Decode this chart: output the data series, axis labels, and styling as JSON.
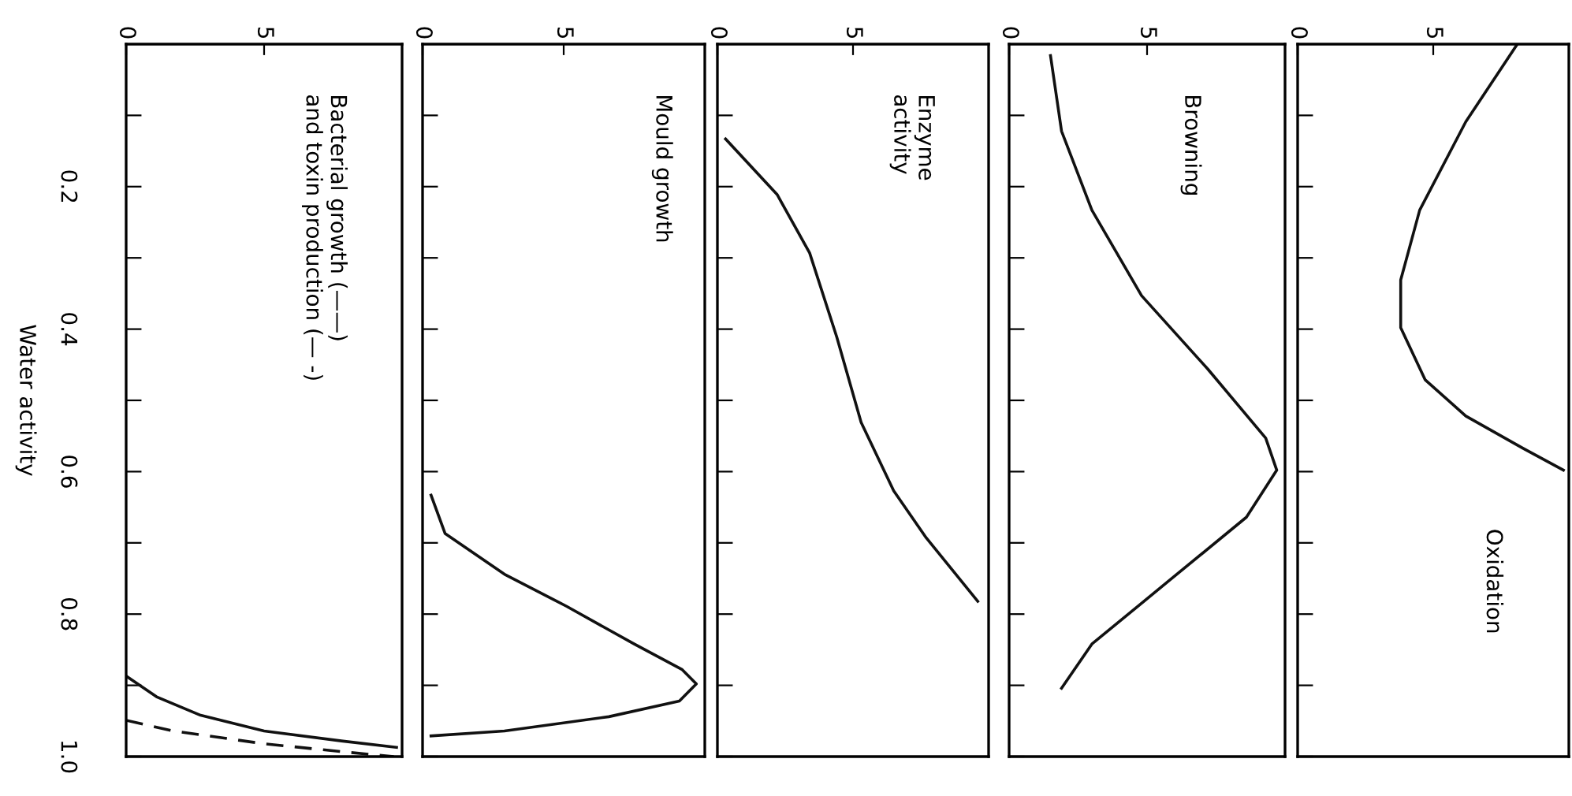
{
  "chart_data": [
    {
      "type": "line",
      "title": "Bacterial growth (——)\nand toxin production (— -)",
      "ylabel": "Water activity",
      "xlim": [
        0,
        10
      ],
      "xticks": [
        0,
        5
      ],
      "ylim": [
        1.0,
        0.0
      ],
      "yticks": [
        {
          "value": 0.1,
          "label": null
        },
        0.2,
        {
          "value": 0.3,
          "label": null
        },
        0.4,
        {
          "value": 0.5,
          "label": null
        },
        0.6,
        {
          "value": 0.7,
          "label": null
        },
        0.8,
        {
          "value": 0.9,
          "label": null
        },
        {
          "value": 1.0,
          "label": "1.0"
        }
      ],
      "grid": false,
      "legend": false,
      "series": [
        {
          "color": "#111111",
          "line_style": "solid",
          "x": [
            0,
            1.1,
            2.7,
            5.0,
            7.8,
            9.8
          ],
          "values": [
            0.887,
            0.916,
            0.942,
            0.964,
            0.978,
            0.987
          ]
        },
        {
          "color": "#111111",
          "line_style": "dashed",
          "x": [
            0,
            1.7,
            5.0,
            7.8,
            9.7
          ],
          "values": [
            0.949,
            0.964,
            0.982,
            0.993,
            1.0
          ]
        }
      ]
    },
    {
      "type": "line",
      "title": "Mould growth",
      "tick_labels": "x",
      "xlim": [
        0,
        10
      ],
      "xticks": [
        0,
        5
      ],
      "ylim": [
        1.0,
        0.0
      ],
      "yticks": [
        {
          "value": 0.1,
          "label": null
        },
        0.2,
        {
          "value": 0.3,
          "label": null
        },
        0.4,
        {
          "value": 0.5,
          "label": null
        },
        0.6,
        {
          "value": 0.7,
          "label": null
        },
        0.8,
        {
          "value": 0.9,
          "label": null
        },
        1.0
      ],
      "grid": false,
      "legend": false,
      "series": [
        {
          "color": "#111111",
          "line_style": "solid",
          "x": [
            0.3,
            0.8,
            2.9,
            5.1,
            7.5,
            9.2,
            9.7,
            9.1,
            6.6,
            2.9,
            0.3
          ],
          "values": [
            0.633,
            0.687,
            0.744,
            0.789,
            0.842,
            0.878,
            0.898,
            0.922,
            0.944,
            0.964,
            0.971
          ]
        }
      ]
    },
    {
      "type": "line",
      "title": "Enzyme\nactivity",
      "tick_labels": "x",
      "xlim": [
        0,
        10
      ],
      "xticks": [
        0,
        5
      ],
      "ylim": [
        1.0,
        0.0
      ],
      "yticks": [
        {
          "value": 0.1,
          "label": null
        },
        0.2,
        {
          "value": 0.3,
          "label": null
        },
        0.4,
        {
          "value": 0.5,
          "label": null
        },
        0.6,
        {
          "value": 0.7,
          "label": null
        },
        0.8,
        {
          "value": 0.9,
          "label": null
        },
        1.0
      ],
      "grid": false,
      "legend": false,
      "series": [
        {
          "color": "#111111",
          "line_style": "solid",
          "x": [
            0.3,
            2.2,
            3.4,
            4.4,
            5.3,
            6.5,
            7.7,
            9.6
          ],
          "values": [
            0.133,
            0.211,
            0.293,
            0.411,
            0.531,
            0.627,
            0.693,
            0.782
          ]
        }
      ]
    },
    {
      "type": "line",
      "title": "Browning",
      "tick_labels": "x",
      "xlim": [
        0,
        10
      ],
      "xticks": [
        0,
        5
      ],
      "ylim": [
        1.0,
        0.0
      ],
      "yticks": [
        {
          "value": 0.1,
          "label": null
        },
        0.2,
        {
          "value": 0.3,
          "label": null
        },
        0.4,
        {
          "value": 0.5,
          "label": null
        },
        0.6,
        {
          "value": 0.7,
          "label": null
        },
        0.8,
        {
          "value": 0.9,
          "label": null
        },
        1.0
      ],
      "grid": false,
      "legend": false,
      "series": [
        {
          "color": "#111111",
          "line_style": "solid",
          "x": [
            1.5,
            1.9,
            3.0,
            4.8,
            7.2,
            9.3,
            9.7,
            8.6,
            5.8,
            3.0,
            1.9
          ],
          "values": [
            0.016,
            0.122,
            0.233,
            0.353,
            0.456,
            0.553,
            0.598,
            0.664,
            0.753,
            0.842,
            0.904
          ]
        }
      ]
    },
    {
      "type": "line",
      "title": "Oxidation",
      "tick_labels": "x",
      "xlim": [
        0,
        10
      ],
      "xticks": [
        0,
        5
      ],
      "ylim": [
        1.0,
        0.0
      ],
      "yticks": [
        {
          "value": 0.1,
          "label": null
        },
        0.2,
        {
          "value": 0.3,
          "label": null
        },
        0.4,
        {
          "value": 0.5,
          "label": null
        },
        0.6,
        {
          "value": 0.7,
          "label": null
        },
        0.8,
        {
          "value": 0.9,
          "label": null
        },
        1.0
      ],
      "grid": false,
      "legend": false,
      "series": [
        {
          "color": "#111111",
          "line_style": "solid",
          "x": [
            8.1,
            6.2,
            4.5,
            3.8,
            3.8,
            4.7,
            6.2,
            8.3,
            9.8
          ],
          "values": [
            0.0,
            0.109,
            0.233,
            0.331,
            0.398,
            0.471,
            0.522,
            0.567,
            0.598
          ]
        }
      ]
    }
  ]
}
